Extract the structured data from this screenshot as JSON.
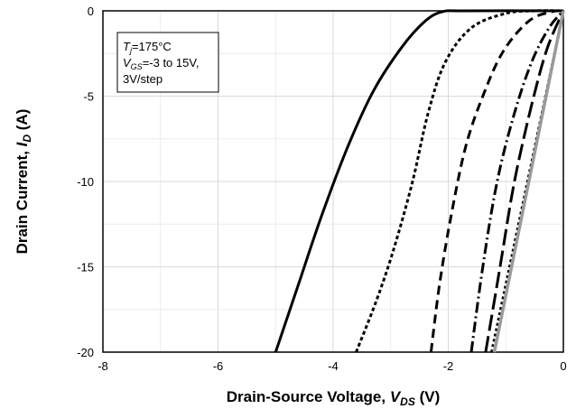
{
  "chart_data": {
    "type": "line",
    "xlabel": {
      "main": "Drain-Source Voltage, ",
      "var": "V",
      "sub": "DS",
      "unit": " (V)"
    },
    "ylabel": {
      "main": "Drain Current, ",
      "var": "I",
      "sub": "D",
      "unit": " (A)"
    },
    "xlim": [
      -8,
      0
    ],
    "ylim": [
      -20,
      0
    ],
    "xticks": [
      -8,
      -6,
      -4,
      -2,
      0
    ],
    "yticks": [
      -20,
      -15,
      -10,
      -5,
      0
    ],
    "grid": true,
    "annotation": {
      "line1": {
        "var": "T",
        "sub": "j",
        "rest": "=175°C"
      },
      "line2": {
        "var": "V",
        "sub": "GS",
        "rest": "=-3 to 15V,"
      },
      "line3": "3V/step"
    },
    "series": [
      {
        "color": "#000000",
        "dash": "solid",
        "width": 3,
        "points": [
          [
            -5.0,
            -20
          ],
          [
            -4.6,
            -16
          ],
          [
            -4.2,
            -12
          ],
          [
            -3.75,
            -8
          ],
          [
            -3.3,
            -4.7
          ],
          [
            -2.8,
            -2.1
          ],
          [
            -2.4,
            -0.6
          ],
          [
            -2.1,
            -0.05
          ],
          [
            -1.7,
            0
          ],
          [
            0,
            0
          ]
        ]
      },
      {
        "color": "#000000",
        "dash": "4,3",
        "width": 3,
        "points": [
          [
            -3.6,
            -20
          ],
          [
            -3.25,
            -17
          ],
          [
            -2.95,
            -14
          ],
          [
            -2.62,
            -10
          ],
          [
            -2.35,
            -6
          ],
          [
            -2.05,
            -3
          ],
          [
            -1.6,
            -1
          ],
          [
            -1.0,
            -0.15
          ],
          [
            -0.5,
            0
          ],
          [
            0,
            0
          ]
        ]
      },
      {
        "color": "#000000",
        "dash": "10,6",
        "width": 3,
        "points": [
          [
            -2.3,
            -20
          ],
          [
            -2.15,
            -16
          ],
          [
            -1.95,
            -12
          ],
          [
            -1.7,
            -8
          ],
          [
            -1.4,
            -5
          ],
          [
            -1.05,
            -2.4
          ],
          [
            -0.6,
            -0.6
          ],
          [
            -0.2,
            -0.05
          ],
          [
            0,
            0
          ]
        ]
      },
      {
        "color": "#000000",
        "dash": "12,4,2,4",
        "width": 3,
        "points": [
          [
            -1.6,
            -20
          ],
          [
            -1.4,
            -15
          ],
          [
            -1.15,
            -10
          ],
          [
            -0.85,
            -6
          ],
          [
            -0.55,
            -3
          ],
          [
            -0.25,
            -1
          ],
          [
            0,
            0
          ]
        ]
      },
      {
        "color": "#000000",
        "dash": "18,6",
        "width": 3,
        "points": [
          [
            -1.35,
            -20
          ],
          [
            -1.1,
            -15
          ],
          [
            -0.85,
            -10
          ],
          [
            -0.55,
            -5.5
          ],
          [
            -0.28,
            -2.2
          ],
          [
            0,
            0
          ]
        ]
      },
      {
        "color": "#000000",
        "dash": "3,3",
        "width": 2.5,
        "points": [
          [
            -1.25,
            -20
          ],
          [
            0,
            0
          ]
        ]
      },
      {
        "color": "#9a9a9a",
        "dash": "solid",
        "width": 3.5,
        "points": [
          [
            -1.2,
            -20
          ],
          [
            0,
            0
          ]
        ]
      }
    ]
  }
}
